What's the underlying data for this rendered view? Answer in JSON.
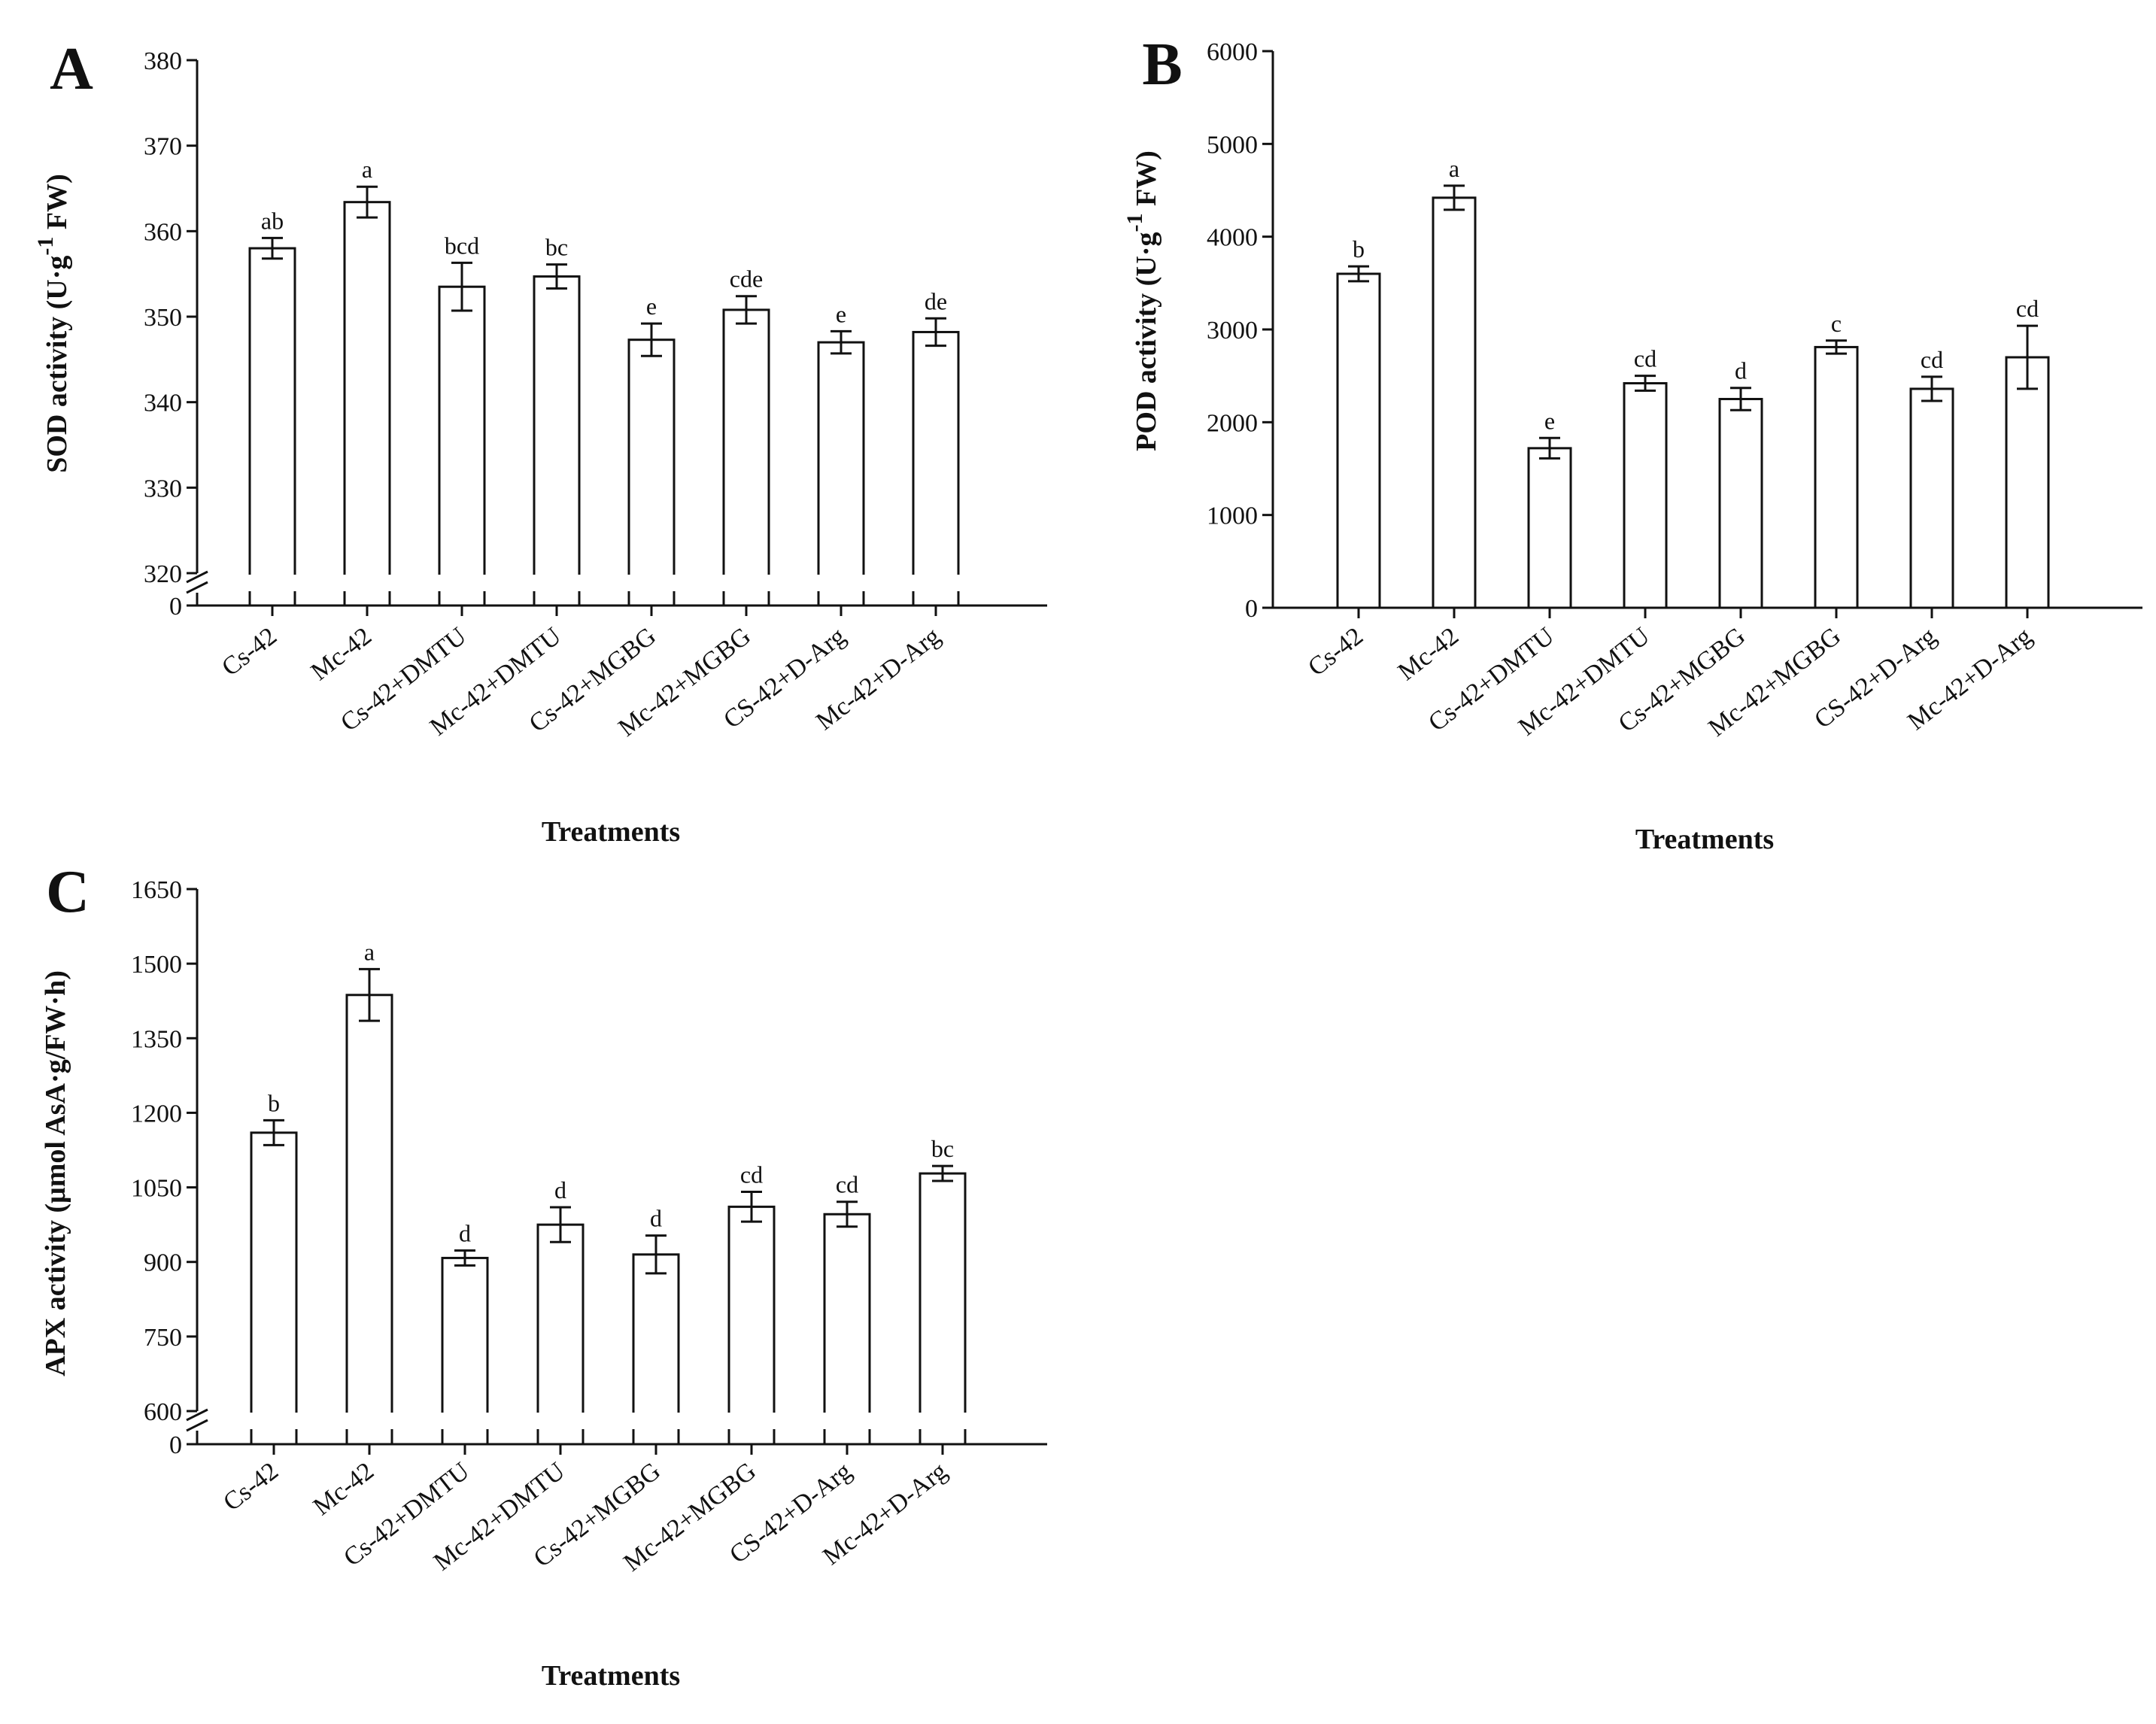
{
  "chart_data": [
    {
      "type": "bar",
      "panel": "A",
      "title": "",
      "xlabel": "Treatments",
      "ylabel": {
        "pre": "SOD activity (U·g",
        "sup": "-1",
        "post": " FW)"
      },
      "categories": [
        "Cs-42",
        "Mc-42",
        "Cs-42+DMTU",
        "Mc-42+DMTU",
        "Cs-42+MGBG",
        "Mc-42+MGBG",
        "CS-42+D-Arg",
        "Mc-42+D-Arg"
      ],
      "values": [
        358.0,
        363.4,
        353.5,
        354.7,
        347.3,
        350.8,
        347.0,
        348.2
      ],
      "errors": [
        1.2,
        1.8,
        2.8,
        1.4,
        1.9,
        1.6,
        1.3,
        1.6
      ],
      "significance": [
        "ab",
        "a",
        "bcd",
        "bc",
        "e",
        "cde",
        "e",
        "de"
      ],
      "ylim": [
        320,
        380
      ],
      "yticks": [
        320,
        330,
        340,
        350,
        360,
        370,
        380
      ],
      "ytick_labels": [
        "320",
        "330",
        "340",
        "350",
        "360",
        "370",
        "380"
      ],
      "axis_break": true,
      "break_label": "0",
      "grid": false
    },
    {
      "type": "bar",
      "panel": "B",
      "title": "",
      "xlabel": "Treatments",
      "ylabel": {
        "pre": "POD activity (U·g",
        "sup": "-1",
        "post": " FW)"
      },
      "categories": [
        "Cs-42",
        "Mc-42",
        "Cs-42+DMTU",
        "Mc-42+DMTU",
        "Cs-42+MGBG",
        "Mc-42+MGBG",
        "CS-42+D-Arg",
        "Mc-42+D-Arg"
      ],
      "values": [
        3600,
        4420,
        1720,
        2420,
        2250,
        2810,
        2360,
        2700
      ],
      "errors": [
        80,
        130,
        110,
        80,
        120,
        70,
        130,
        340
      ],
      "significance": [
        "b",
        "a",
        "e",
        "cd",
        "d",
        "c",
        "cd",
        "cd"
      ],
      "ylim": [
        0,
        6000
      ],
      "yticks": [
        0,
        1000,
        2000,
        3000,
        4000,
        5000,
        6000
      ],
      "ytick_labels": [
        "0",
        "1000",
        "2000",
        "3000",
        "4000",
        "5000",
        "6000"
      ],
      "axis_break": false,
      "grid": false
    },
    {
      "type": "bar",
      "panel": "C",
      "title": "",
      "xlabel": "Treatments",
      "ylabel": {
        "pre": "APX activity (μmol AsA·g/FW·h)",
        "sup": "",
        "post": ""
      },
      "categories": [
        "Cs-42",
        "Mc-42",
        "Cs-42+DMTU",
        "Mc-42+DMTU",
        "Cs-42+MGBG",
        "Mc-42+MGBG",
        "CS-42+D-Arg",
        "Mc-42+D-Arg"
      ],
      "values": [
        1160,
        1437,
        908,
        975,
        915,
        1011,
        996,
        1078
      ],
      "errors": [
        25,
        52,
        15,
        35,
        38,
        30,
        25,
        15
      ],
      "significance": [
        "b",
        "a",
        "d",
        "d",
        "d",
        "cd",
        "cd",
        "bc"
      ],
      "ylim": [
        600,
        1650
      ],
      "yticks": [
        600,
        750,
        900,
        1050,
        1200,
        1350,
        1500,
        1650
      ],
      "ytick_labels": [
        "600",
        "750",
        "900",
        "1050",
        "1200",
        "1350",
        "1500",
        "1650"
      ],
      "axis_break": true,
      "break_label": "0",
      "grid": false
    }
  ]
}
